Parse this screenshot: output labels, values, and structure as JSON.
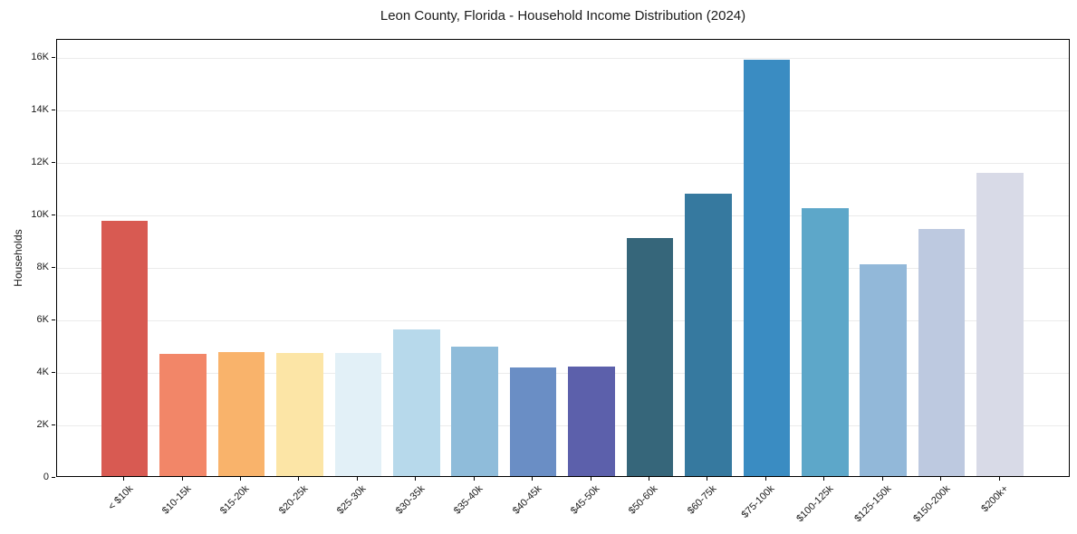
{
  "title": "Leon County, Florida - Household Income Distribution (2024)",
  "chart_data": {
    "type": "bar",
    "title": "Leon County, Florida - Household Income Distribution (2024)",
    "xlabel": "",
    "ylabel": "Households",
    "categories": [
      "< $10k",
      "$10-15k",
      "$15-20k",
      "$20-25k",
      "$25-30k",
      "$30-35k",
      "$35-40k",
      "$40-45k",
      "$45-50k",
      "$50-60k",
      "$60-75k",
      "$75-100k",
      "$100-125k",
      "$125-150k",
      "$150-200k",
      "$200k+"
    ],
    "values": [
      9750,
      4680,
      4740,
      4710,
      4700,
      5610,
      4950,
      4160,
      4170,
      9100,
      10790,
      15880,
      10240,
      8090,
      9440,
      11560
    ],
    "bar_colors": [
      "#d85a52",
      "#f28668",
      "#f9b36b",
      "#fce5a6",
      "#e2f0f7",
      "#b7d9eb",
      "#8fbcda",
      "#6a8ec5",
      "#5c60ab",
      "#36667a",
      "#36799f",
      "#3a8cc2",
      "#5da7c9",
      "#92b8d9",
      "#bdc9e0",
      "#d8dae7"
    ],
    "ylim": [
      0,
      16720
    ],
    "ytick_values": [
      0,
      2000,
      4000,
      6000,
      8000,
      10000,
      12000,
      14000,
      16000
    ],
    "ytick_labels": [
      "0",
      "2K",
      "4K",
      "6K",
      "8K",
      "10K",
      "12K",
      "14K",
      "16K"
    ],
    "xtick_label_rotation_deg": 45,
    "grid": "horizontal",
    "grid_color": "#ebebeb",
    "legend_position": "none",
    "plot_background": "#ffffff",
    "axis_color": "#000000"
  }
}
